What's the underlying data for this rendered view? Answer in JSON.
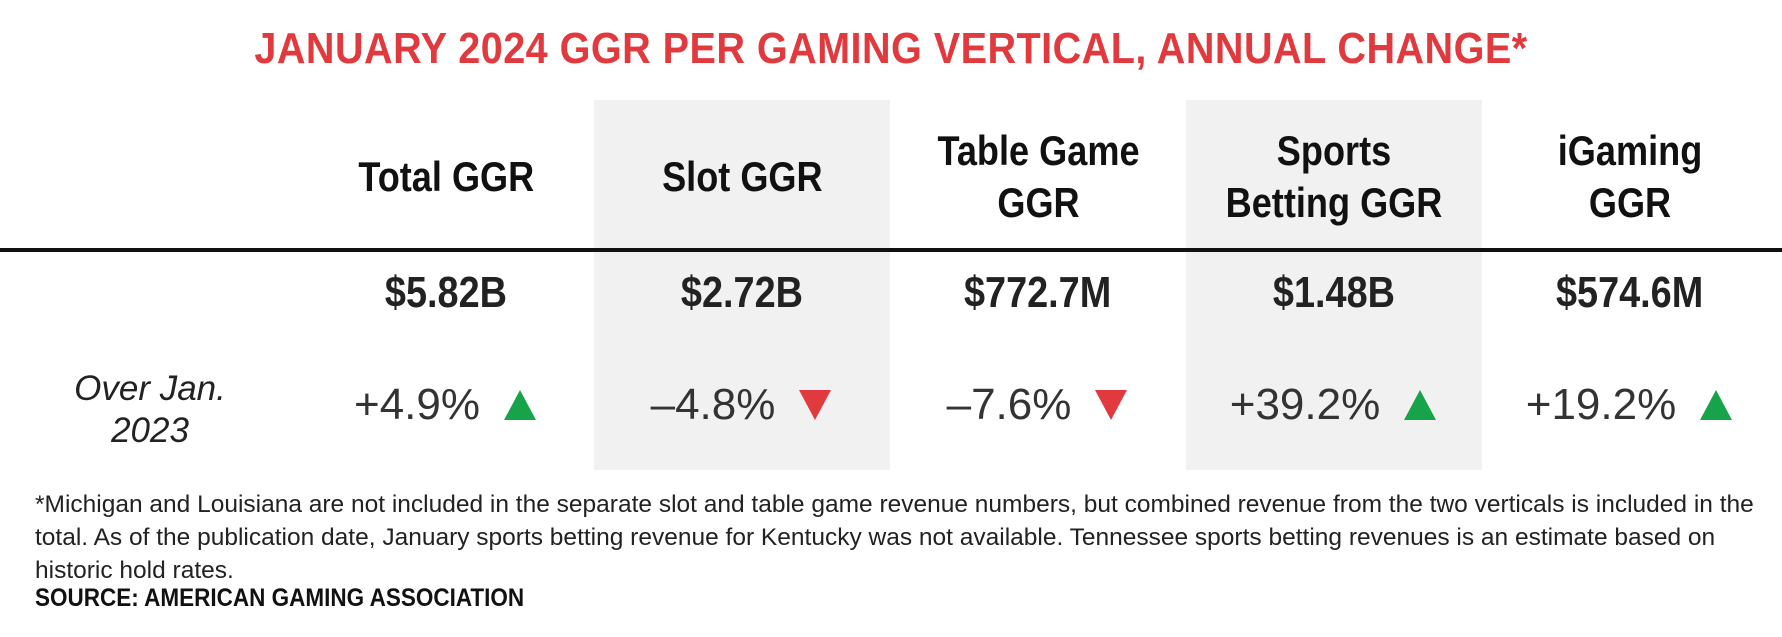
{
  "title": "JANUARY 2024 GGR PER GAMING VERTICAL, ANNUAL CHANGE*",
  "row_label": "Over Jan. 2023",
  "colors": {
    "title": "#e03a3e",
    "up": "#16a34a",
    "down": "#e03a3e",
    "shade": "#f1f1f1"
  },
  "chart_data": {
    "type": "table",
    "title": "JANUARY 2024 GGR PER GAMING VERTICAL, ANNUAL CHANGE*",
    "columns": [
      "Total GGR",
      "Slot GGR",
      "Table Game GGR",
      "Sports Betting GGR",
      "iGaming GGR"
    ],
    "rows": [
      {
        "label": "",
        "values": [
          "$5.82B",
          "$2.72B",
          "$772.7M",
          "$1.48B",
          "$574.6M"
        ]
      },
      {
        "label": "Over Jan. 2023",
        "values": [
          "+4.9%",
          "–4.8%",
          "–7.6%",
          "+39.2%",
          "+19.2%"
        ]
      }
    ],
    "revenue_usd": [
      5820000000,
      2720000000,
      772700000,
      1480000000,
      574600000
    ],
    "change_pct": [
      4.9,
      -4.8,
      -7.6,
      39.2,
      19.2
    ],
    "direction": [
      "up",
      "down",
      "down",
      "up",
      "up"
    ]
  },
  "columns": [
    {
      "header": "Total GGR",
      "value": "$5.82B",
      "change": "+4.9%",
      "direction": "up",
      "icon": "triangle-up-icon"
    },
    {
      "header": "Slot GGR",
      "value": "$2.72B",
      "change": "–4.8%",
      "direction": "down",
      "icon": "triangle-down-icon"
    },
    {
      "header": "Table Game GGR",
      "value": "$772.7M",
      "change": "–7.6%",
      "direction": "down",
      "icon": "triangle-down-icon"
    },
    {
      "header": "Sports Betting GGR",
      "value": "$1.48B",
      "change": "+39.2%",
      "direction": "up",
      "icon": "triangle-up-icon"
    },
    {
      "header": "iGaming GGR",
      "value": "$574.6M",
      "change": "+19.2%",
      "direction": "up",
      "icon": "triangle-up-icon"
    }
  ],
  "footnote": "*Michigan and Louisiana are not included in the separate slot and table game revenue numbers, but combined revenue from the two verticals is included in the total. As of the publication date, January sports betting revenue for Kentucky was not available. Tennessee sports betting revenues is an estimate based on historic hold rates.",
  "source": "SOURCE: AMERICAN GAMING ASSOCIATION"
}
